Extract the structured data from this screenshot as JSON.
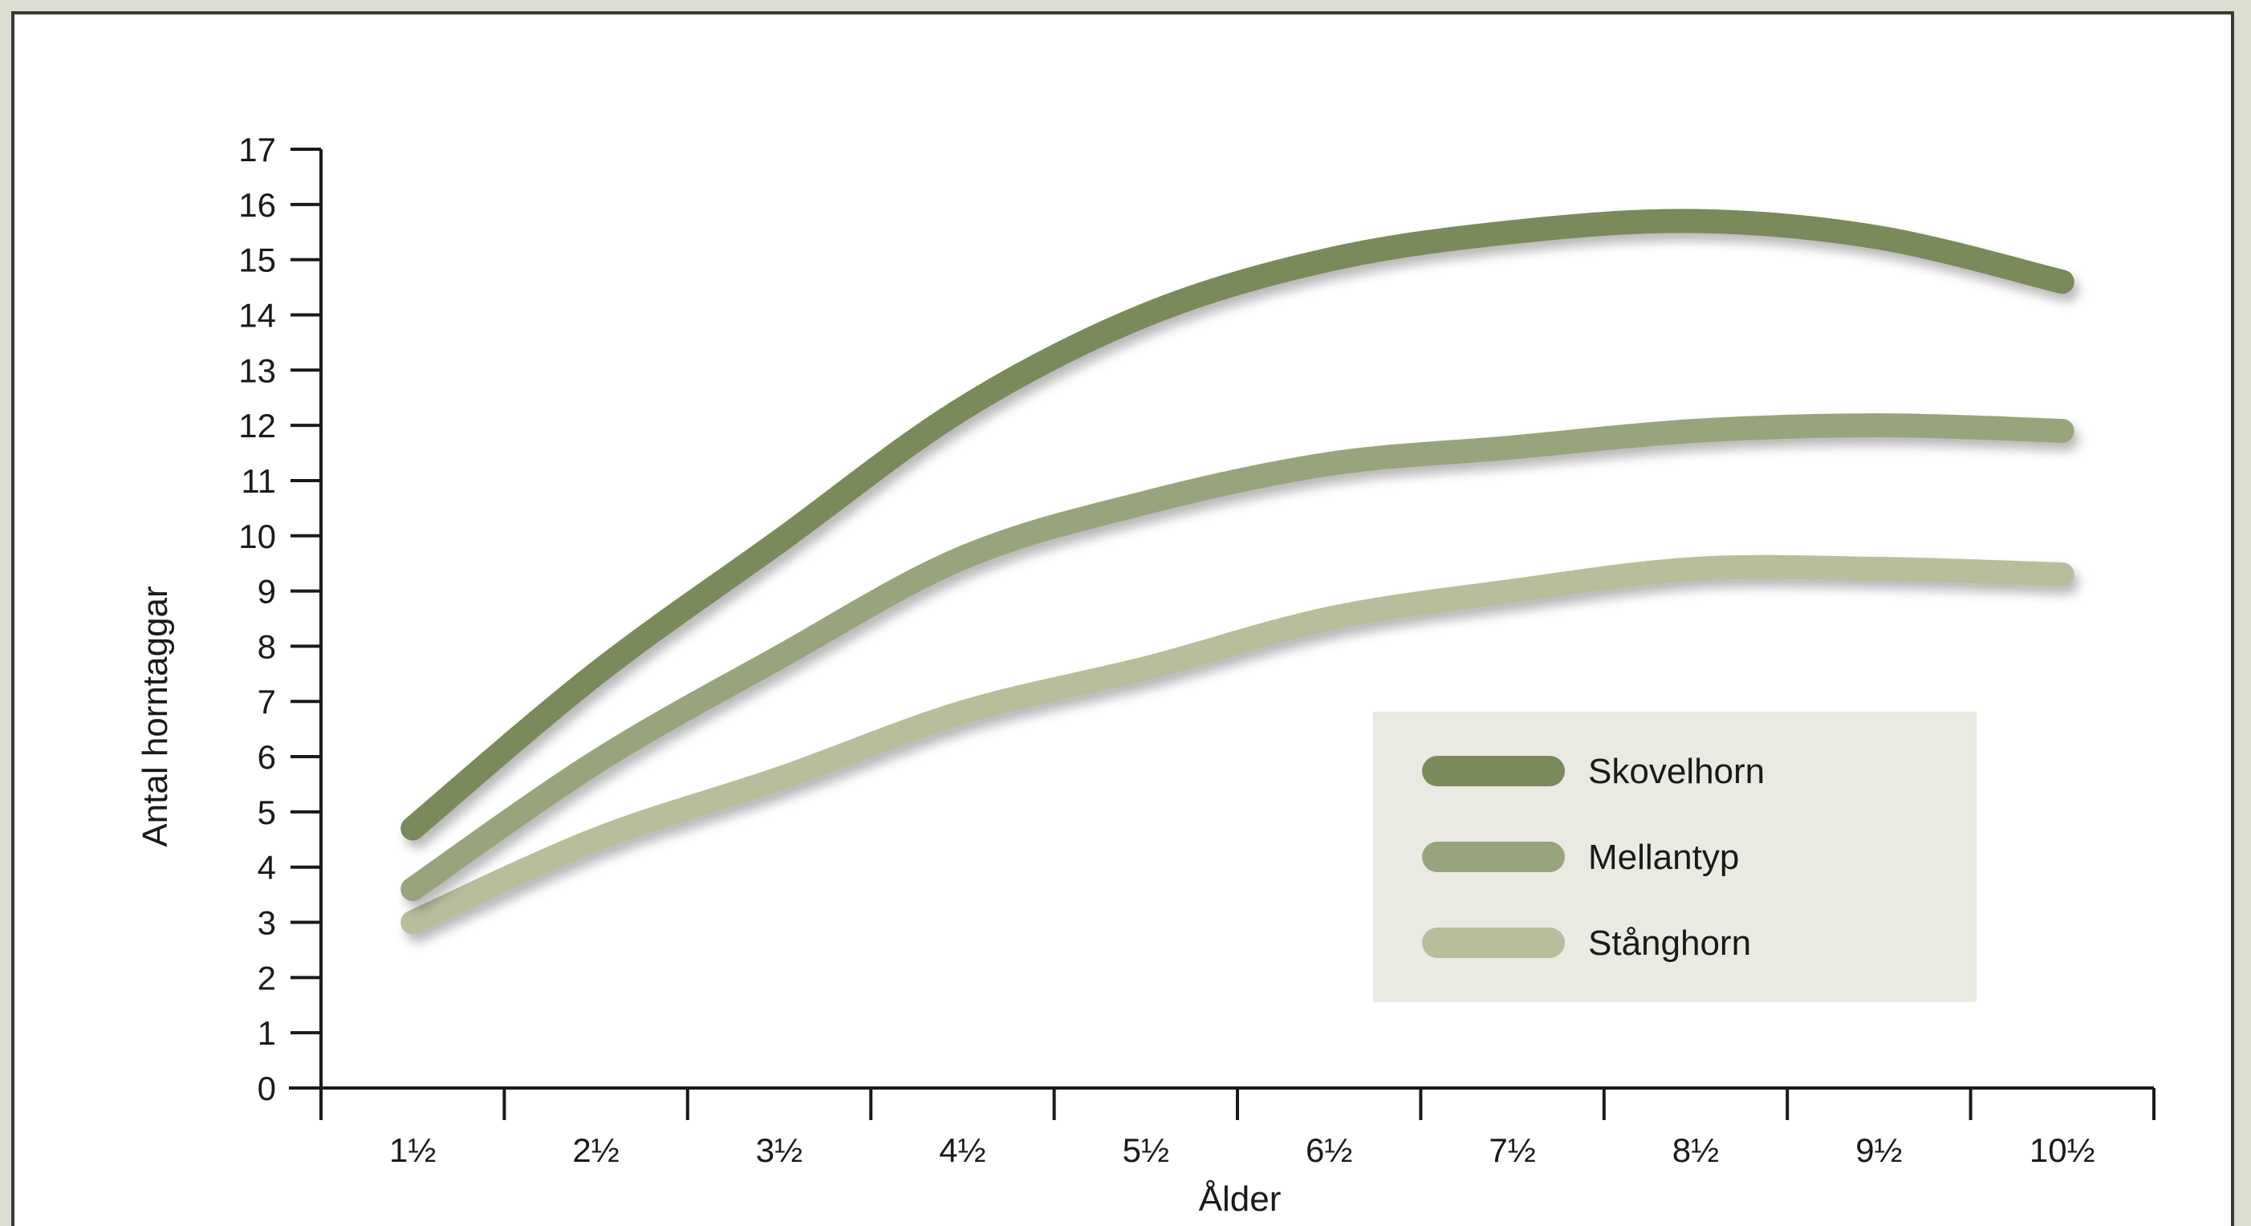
{
  "chart_data": {
    "type": "line",
    "title": "",
    "xlabel": "Ålder",
    "ylabel": "Antal horntaggar",
    "categories": [
      "1½",
      "2½",
      "3½",
      "4½",
      "5½",
      "6½",
      "7½",
      "8½",
      "9½",
      "10½"
    ],
    "ylim": [
      0,
      17
    ],
    "yticks": [
      0,
      1,
      2,
      3,
      4,
      5,
      6,
      7,
      8,
      9,
      10,
      11,
      12,
      13,
      14,
      15,
      16,
      17
    ],
    "grid": false,
    "legend_position": "lower-right",
    "series": [
      {
        "name": "Skovelhorn",
        "color": "#7a8a5a",
        "values": [
          4.7,
          7.5,
          9.9,
          12.3,
          14.0,
          15.0,
          15.5,
          15.7,
          15.4,
          14.6
        ]
      },
      {
        "name": "Mellantyp",
        "color": "#98a47c",
        "values": [
          3.6,
          5.9,
          7.8,
          9.6,
          10.6,
          11.3,
          11.6,
          11.9,
          12.0,
          11.9
        ]
      },
      {
        "name": "Stånghorn",
        "color": "#b8bd9c",
        "values": [
          3.0,
          4.5,
          5.6,
          6.8,
          7.6,
          8.5,
          9.0,
          9.4,
          9.4,
          9.3
        ]
      }
    ]
  }
}
